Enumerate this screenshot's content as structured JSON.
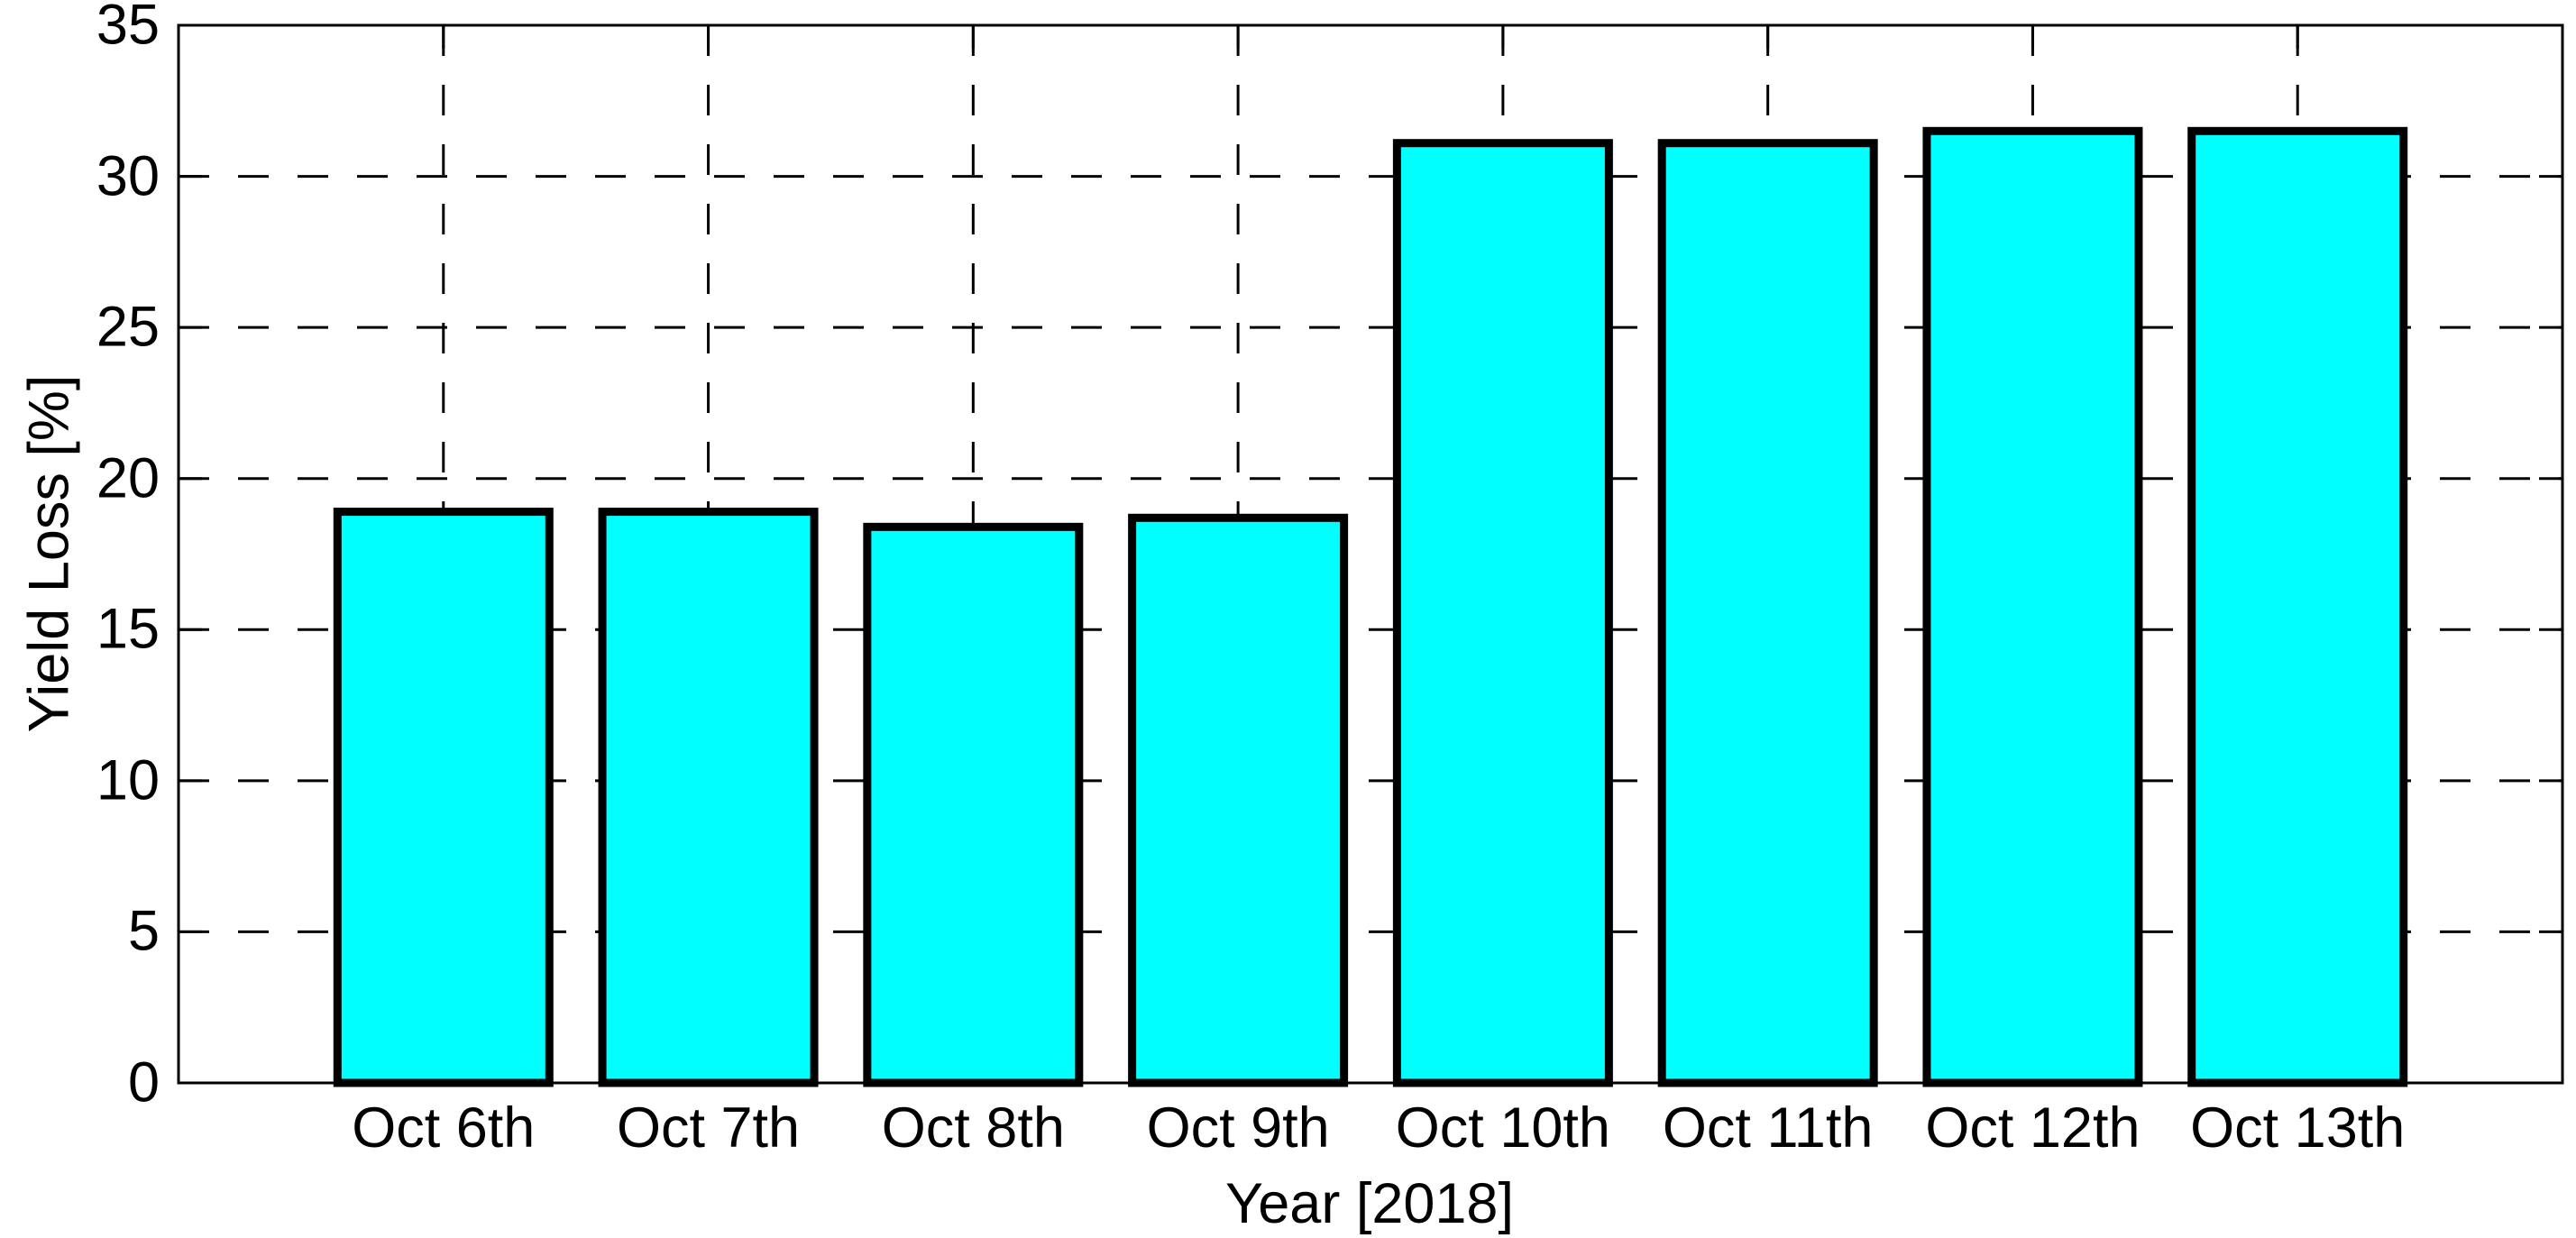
{
  "chart_data": {
    "type": "bar",
    "title": "",
    "xlabel": "Year [2018]",
    "ylabel": "Yield Loss [%]",
    "categories": [
      "Oct 6th",
      "Oct 7th",
      "Oct 8th",
      "Oct 9th",
      "Oct 10th",
      "Oct 11th",
      "Oct 12th",
      "Oct 13th"
    ],
    "values": [
      18.9,
      18.9,
      18.4,
      18.7,
      31.1,
      31.1,
      31.5,
      31.5
    ],
    "ylim": [
      0,
      35
    ],
    "yticks": [
      0,
      5,
      10,
      15,
      20,
      25,
      30,
      35
    ],
    "xlim": [
      0,
      9
    ],
    "grid": "dashed",
    "legend": "none",
    "colors": {
      "bar_fill": "#00FFFF",
      "bar_edge": "#000000",
      "grid_line": "#000000",
      "axis_frame": "#000000",
      "text": "#000000",
      "background": "#FFFFFF"
    }
  }
}
